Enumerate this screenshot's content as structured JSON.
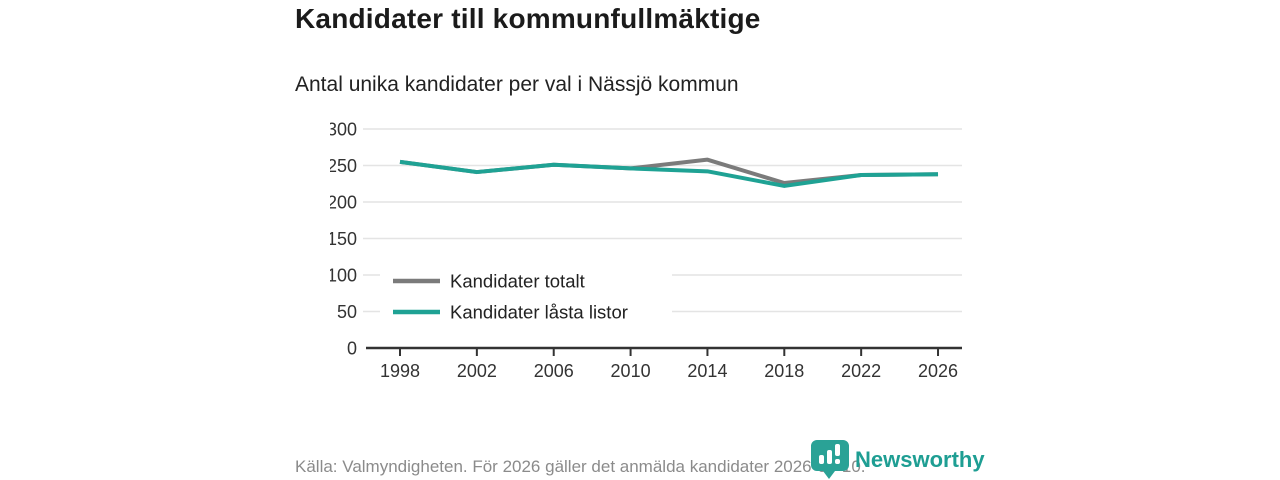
{
  "header": {
    "title": "Kandidater till kommunfullmäktige",
    "subtitle": "Antal unika kandidater per val i Nässjö kommun"
  },
  "chart_data": {
    "type": "line",
    "title": "Kandidater till kommunfullmäktige",
    "subtitle": "Antal unika kandidater per val i Nässjö kommun",
    "x": [
      1998,
      2002,
      2006,
      2010,
      2014,
      2018,
      2022,
      2026
    ],
    "series": [
      {
        "name": "Kandidater totalt",
        "color": "#7b7b7b",
        "values": [
          255,
          241,
          251,
          246,
          258,
          226,
          237,
          238
        ]
      },
      {
        "name": "Kandidater låsta listor",
        "color": "#1fa294",
        "values": [
          255,
          241,
          251,
          246,
          242,
          222,
          237,
          238
        ]
      }
    ],
    "ylim": [
      0,
      300
    ],
    "yticks": [
      0,
      50,
      100,
      150,
      200,
      250,
      300
    ],
    "xlabel": "",
    "ylabel": "",
    "grid": true,
    "legend_position": "inside-left-bottom",
    "colors": {
      "grid": "#e4e4e4",
      "axis": "#333333",
      "tick_label": "#333333",
      "legend_label": "#222222"
    }
  },
  "footer": {
    "source": "Källa: Valmyndigheten. För 2026 gäller det anmälda kandidater 2026-04-10.",
    "brand": "Newsworthy",
    "brand_color": "#1e9e93"
  }
}
